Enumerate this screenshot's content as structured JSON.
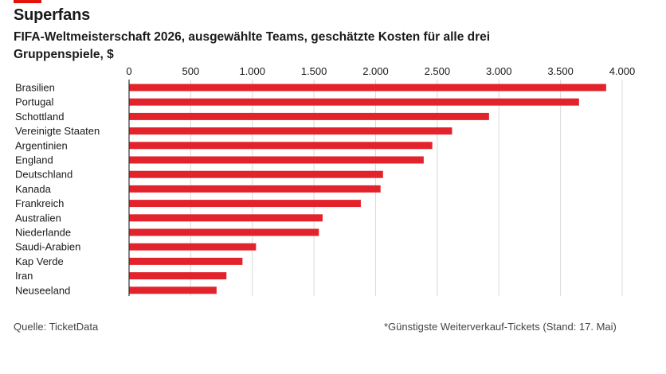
{
  "header": {
    "title": "Superfans",
    "subtitle": "FIFA-Weltmeisterschaft 2026, ausgewählte Teams, geschätzte Kosten für alle drei Gruppenspiele, $"
  },
  "footer": {
    "source": "Quelle: TicketData",
    "note": "*Günstigste Weiterverkauf-Tickets (Stand: 17. Mai)"
  },
  "colors": {
    "bar": "#e3232b",
    "accent": "#e3120b",
    "grid": "#d9d9d9",
    "axis": "#333333"
  },
  "chart_data": {
    "type": "bar",
    "orientation": "horizontal",
    "title": "Superfans",
    "subtitle": "FIFA-Weltmeisterschaft 2026, ausgewählte Teams, geschätzte Kosten für alle drei Gruppenspiele, $",
    "categories": [
      "Brasilien",
      "Portugal",
      "Schottland",
      "Vereinigte Staaten",
      "Argentinien",
      "England",
      "Deutschland",
      "Kanada",
      "Frankreich",
      "Australien",
      "Niederlande",
      "Saudi-Arabien",
      "Kap Verde",
      "Iran",
      "Neuseeland"
    ],
    "values": [
      3870,
      3650,
      2920,
      2620,
      2460,
      2390,
      2060,
      2040,
      1880,
      1570,
      1540,
      1030,
      920,
      790,
      710
    ],
    "xlim": [
      0,
      4000
    ],
    "xticks": [
      0,
      500,
      1000,
      1500,
      2000,
      2500,
      3000,
      3500,
      4000
    ],
    "xtick_labels": [
      "0",
      "500",
      "1.000",
      "1.500",
      "2.000",
      "2.500",
      "3.000",
      "3.500",
      "4.000"
    ],
    "xaxis_position": "top",
    "grid": true
  }
}
